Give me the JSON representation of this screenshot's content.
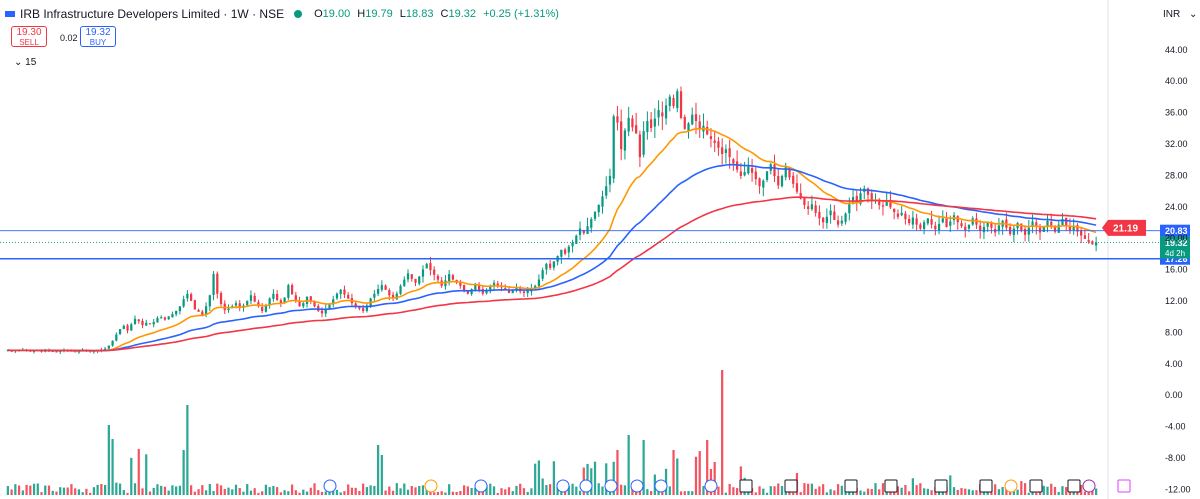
{
  "header": {
    "title": "IRB Infrastructure Developers Limited · 1W · NSE",
    "open_label": "O",
    "open": "19.00",
    "high_label": "H",
    "high": "19.79",
    "low_label": "L",
    "low": "18.83",
    "close_label": "C",
    "close": "19.32",
    "change": "+0.25 (+1.31%)"
  },
  "trade": {
    "sell_price": "19.30",
    "sell_label": "SELL",
    "spread": "0.02",
    "buy_price": "19.32",
    "buy_label": "BUY"
  },
  "indicators_toggle": "15",
  "currency": "INR",
  "colors": {
    "up": "#089981",
    "down": "#f23645",
    "ema_fast": "#ff9800",
    "ema_mid": "#2962ff",
    "ema_slow": "#f23645",
    "hline": "#2962ff"
  },
  "chart_data": {
    "type": "candlestick",
    "symbol": "IRB",
    "interval": "1W",
    "exchange": "NSE",
    "price_axis_ticks": [
      "44.00",
      "40.00",
      "36.00",
      "32.00",
      "28.00",
      "24.00",
      "20.00",
      "16.00",
      "12.00",
      "8.00",
      "4.00",
      "0.00",
      "-4.00",
      "-8.00",
      "-12.00"
    ],
    "price_axis_values": [
      44,
      40,
      36,
      32,
      28,
      24,
      20,
      16,
      12,
      8,
      4,
      0,
      -4,
      -8,
      -12
    ],
    "ylim": [
      -13.5,
      45.7
    ],
    "horizontal_lines": [
      {
        "value": 20.83,
        "label": "20.83",
        "style": "thin",
        "color": "#2962ff"
      },
      {
        "value": 17.26,
        "label": "17.26",
        "style": "thick",
        "color": "#2962ff"
      }
    ],
    "last_price": {
      "value": 19.32,
      "label": "19.32",
      "countdown": "4d 2h",
      "color": "#089981"
    },
    "ema_last": {
      "value": 21.19,
      "label": "21.19",
      "color": "#f23645"
    },
    "series_close": [
      5.6,
      5.5,
      5.6,
      5.5,
      5.7,
      5.6,
      5.5,
      5.5,
      5.6,
      5.4,
      5.6,
      5.5,
      5.5,
      5.4,
      5.5,
      5.6,
      5.5,
      5.5,
      5.4,
      5.5,
      5.6,
      5.5,
      5.4,
      5.5,
      5.6,
      5.6,
      5.8,
      6.2,
      6.8,
      7.6,
      8.3,
      8.7,
      8.1,
      8.9,
      9.6,
      9.3,
      8.8,
      9.1,
      8.9,
      9.2,
      9.7,
      9.8,
      9.5,
      9.9,
      10.2,
      10.6,
      11.2,
      12.1,
      12.8,
      11.9,
      10.8,
      10.5,
      10.1,
      11.2,
      12.6,
      15.3,
      12.8,
      11.5,
      10.7,
      10.9,
      11.2,
      11.6,
      11.0,
      11.3,
      11.9,
      12.6,
      11.8,
      11.2,
      10.6,
      11.3,
      12.2,
      12.8,
      12.0,
      11.6,
      12.3,
      13.9,
      12.7,
      11.9,
      11.2,
      11.6,
      12.4,
      11.8,
      11.2,
      10.6,
      10.3,
      10.9,
      11.5,
      12.1,
      12.8,
      13.3,
      12.7,
      12.2,
      11.6,
      11.2,
      10.9,
      10.6,
      11.3,
      12.2,
      12.8,
      13.4,
      13.9,
      13.3,
      12.6,
      12.2,
      12.8,
      13.8,
      14.6,
      15.4,
      14.7,
      14.2,
      15.0,
      15.9,
      16.6,
      15.8,
      15.2,
      14.6,
      13.8,
      14.5,
      15.3,
      14.6,
      14.2,
      13.8,
      13.2,
      12.8,
      13.4,
      13.9,
      13.3,
      12.8,
      13.2,
      13.8,
      14.2,
      13.8,
      13.6,
      13.3,
      12.9,
      13.2,
      13.6,
      13.1,
      12.9,
      13.2,
      13.4,
      13.8,
      14.6,
      15.8,
      16.6,
      16.1,
      16.9,
      17.6,
      18.4,
      17.9,
      18.8,
      19.3,
      20.2,
      21.1,
      20.5,
      21.4,
      22.3,
      23.2,
      24.1,
      25.2,
      26.5,
      27.8,
      35.4,
      34.6,
      31.2,
      33.6,
      35.2,
      34.0,
      33.2,
      30.2,
      33.5,
      34.8,
      33.9,
      35.1,
      36.2,
      35.4,
      36.8,
      37.9,
      36.7,
      38.6,
      35.2,
      33.8,
      34.5,
      35.6,
      34.8,
      33.7,
      34.2,
      33.1,
      32.5,
      32.0,
      31.4,
      30.6,
      31.2,
      30.2,
      29.4,
      28.6,
      27.8,
      28.3,
      29.0,
      28.2,
      27.4,
      26.5,
      27.2,
      28.4,
      29.3,
      27.8,
      26.6,
      27.8,
      28.9,
      27.6,
      26.8,
      25.8,
      24.9,
      24.1,
      23.6,
      24.2,
      23.1,
      22.4,
      21.9,
      22.6,
      23.4,
      22.2,
      21.6,
      22.1,
      23.0,
      24.2,
      25.1,
      24.3,
      25.6,
      26.2,
      25.4,
      24.6,
      24.8,
      24.1,
      23.9,
      24.6,
      23.8,
      23.2,
      22.6,
      23.1,
      22.3,
      21.8,
      22.5,
      21.6,
      21.1,
      21.9,
      22.4,
      21.6,
      21.0,
      21.7,
      22.4,
      21.3,
      22.0,
      22.8,
      21.9,
      21.4,
      20.9,
      21.6,
      22.4,
      21.6,
      20.8,
      21.3,
      21.9,
      21.2,
      20.6,
      21.5,
      22.1,
      21.2,
      20.4,
      21.1,
      21.8,
      20.9,
      20.3,
      21.2,
      22.0,
      21.4,
      20.6,
      21.3,
      22.1,
      21.3,
      20.7,
      21.6,
      22.3,
      21.5,
      20.8,
      21.4,
      20.7,
      20.2,
      19.8,
      19.4,
      19.07,
      19.32
    ],
    "volume_scale_ticks": [
      0,
      -4,
      -8,
      -12
    ]
  }
}
